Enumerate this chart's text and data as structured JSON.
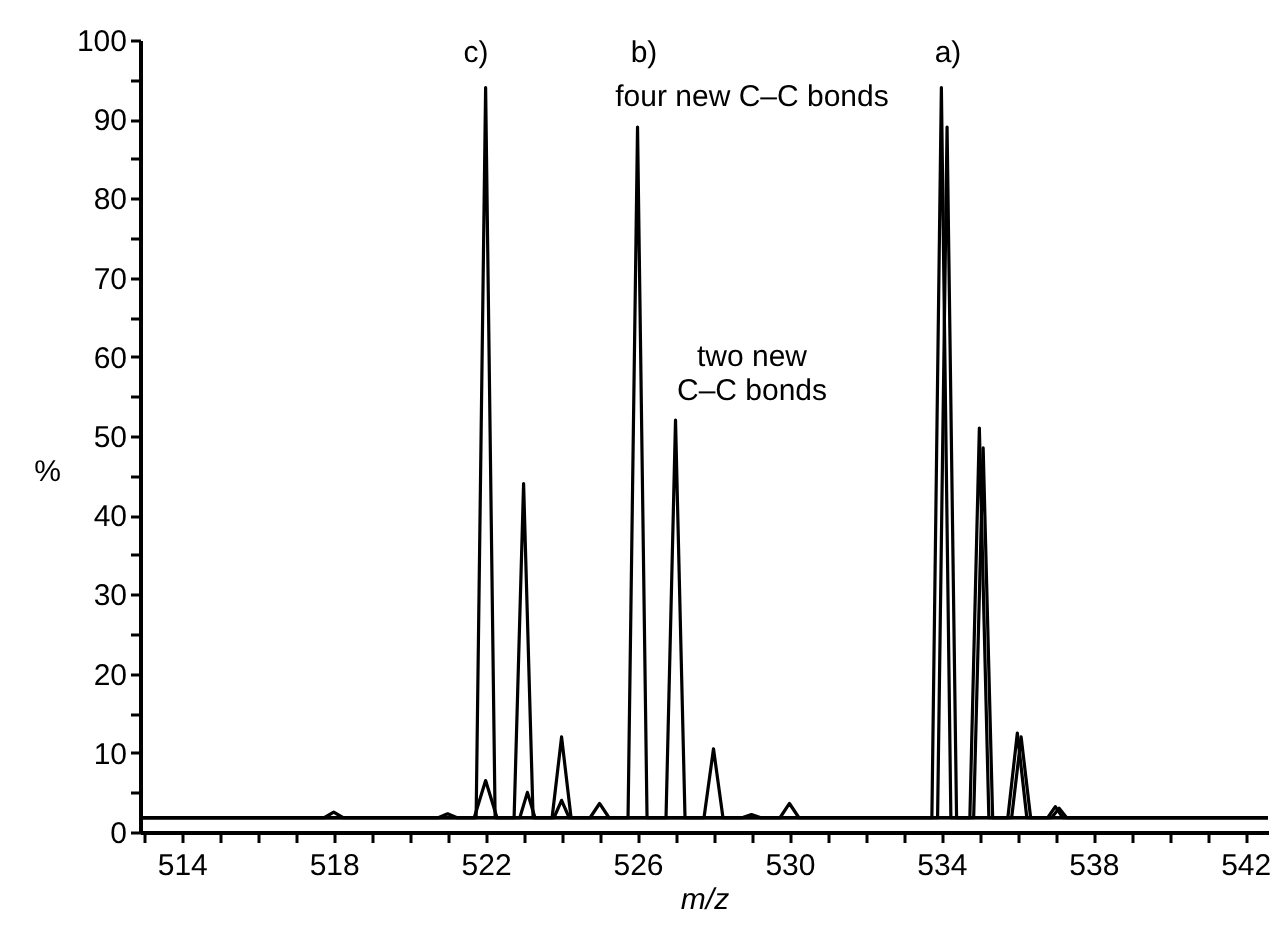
{
  "chart_data": {
    "type": "line",
    "xlabel": "m/z",
    "ylabel": "%",
    "xlim": [
      512.9,
      542.6
    ],
    "ylim": [
      0,
      100
    ],
    "xticks": [
      {
        "value": 513,
        "label": null
      },
      514,
      {
        "value": 515,
        "label": null
      },
      {
        "value": 516,
        "label": null
      },
      {
        "value": 517,
        "label": null
      },
      518,
      {
        "value": 519,
        "label": null
      },
      {
        "value": 520,
        "label": null
      },
      {
        "value": 521,
        "label": null
      },
      522,
      {
        "value": 523,
        "label": null
      },
      {
        "value": 524,
        "label": null
      },
      {
        "value": 525,
        "label": null
      },
      526,
      {
        "value": 527,
        "label": null
      },
      {
        "value": 528,
        "label": null
      },
      {
        "value": 529,
        "label": null
      },
      530,
      {
        "value": 531,
        "label": null
      },
      {
        "value": 532,
        "label": null
      },
      {
        "value": 533,
        "label": null
      },
      534,
      {
        "value": 535,
        "label": null
      },
      {
        "value": 536,
        "label": null
      },
      {
        "value": 537,
        "label": null
      },
      538,
      {
        "value": 539,
        "label": null
      },
      {
        "value": 540,
        "label": null
      },
      {
        "value": 541,
        "label": null
      },
      542
    ],
    "yticks": [
      0,
      {
        "value": 5,
        "label": null
      },
      10,
      {
        "value": 15,
        "label": null
      },
      20,
      {
        "value": 25,
        "label": null
      },
      30,
      {
        "value": 35,
        "label": null
      },
      40,
      {
        "value": 45,
        "label": null
      },
      50,
      {
        "value": 55,
        "label": null
      },
      60,
      {
        "value": 65,
        "label": null
      },
      70,
      {
        "value": 75,
        "label": null
      },
      80,
      {
        "value": 85,
        "label": null
      },
      90,
      {
        "value": 95,
        "label": null
      },
      100
    ],
    "grid": false,
    "legend": false,
    "marker": "none",
    "line_style": "solid",
    "series": [
      {
        "color": "#000000",
        "x": [
          512.9,
          520.75,
          521,
          521.25,
          521.75,
          522,
          522.25,
          522.75,
          523,
          523.25,
          523.75,
          524,
          524.25,
          524.75,
          525,
          525.25,
          542.6
        ],
        "values": [
          1.8,
          1.8,
          2.3,
          1.8,
          1.8,
          94,
          1.8,
          1.8,
          44,
          1.8,
          1.8,
          12,
          1.8,
          1.8,
          3.6,
          1.8,
          1.8
        ]
      },
      {
        "color": "#000000",
        "x": [
          512.9,
          517.75,
          518,
          518.25,
          525.75,
          526,
          526.25,
          526.75,
          527,
          527.25,
          527.75,
          528,
          528.25,
          528.75,
          529,
          529.25,
          529.75,
          530,
          530.25,
          542.6
        ],
        "values": [
          1.8,
          1.8,
          2.5,
          1.8,
          1.8,
          89,
          1.8,
          1.8,
          52,
          1.8,
          1.8,
          10.5,
          1.8,
          1.8,
          2.2,
          1.8,
          1.8,
          3.6,
          1.8,
          1.8
        ]
      },
      {
        "color": "#000000",
        "x": [
          512.9,
          521.7,
          522,
          522.3,
          522.9,
          523.1,
          523.3,
          523.8,
          524,
          524.2,
          542.6
        ],
        "values": [
          1.8,
          1.8,
          6.5,
          1.8,
          1.8,
          5,
          1.8,
          1.8,
          4,
          1.8,
          1.8
        ]
      },
      {
        "color": "#000000",
        "x": [
          512.9,
          533.75,
          534,
          534.25,
          534.75,
          535,
          535.25,
          535.75,
          536,
          536.25,
          536.8,
          537,
          537.2,
          542.6
        ],
        "values": [
          1.8,
          1.8,
          94,
          1.8,
          1.8,
          51,
          1.8,
          1.8,
          12.5,
          1.8,
          1.8,
          3.2,
          1.8,
          1.8
        ]
      },
      {
        "color": "#000000",
        "x": [
          512.9,
          533.9,
          534.15,
          534.4,
          534.85,
          535.1,
          535.35,
          535.85,
          536.1,
          536.35,
          536.9,
          537.1,
          537.3,
          542.6
        ],
        "values": [
          1.8,
          1.8,
          89,
          1.8,
          1.8,
          48.5,
          1.8,
          1.8,
          12,
          1.8,
          1.8,
          3,
          1.8,
          1.8
        ]
      }
    ],
    "annotations": [
      "c)",
      "b)",
      "a)",
      "four new C–C bonds",
      "two new\nC–C bonds"
    ]
  }
}
